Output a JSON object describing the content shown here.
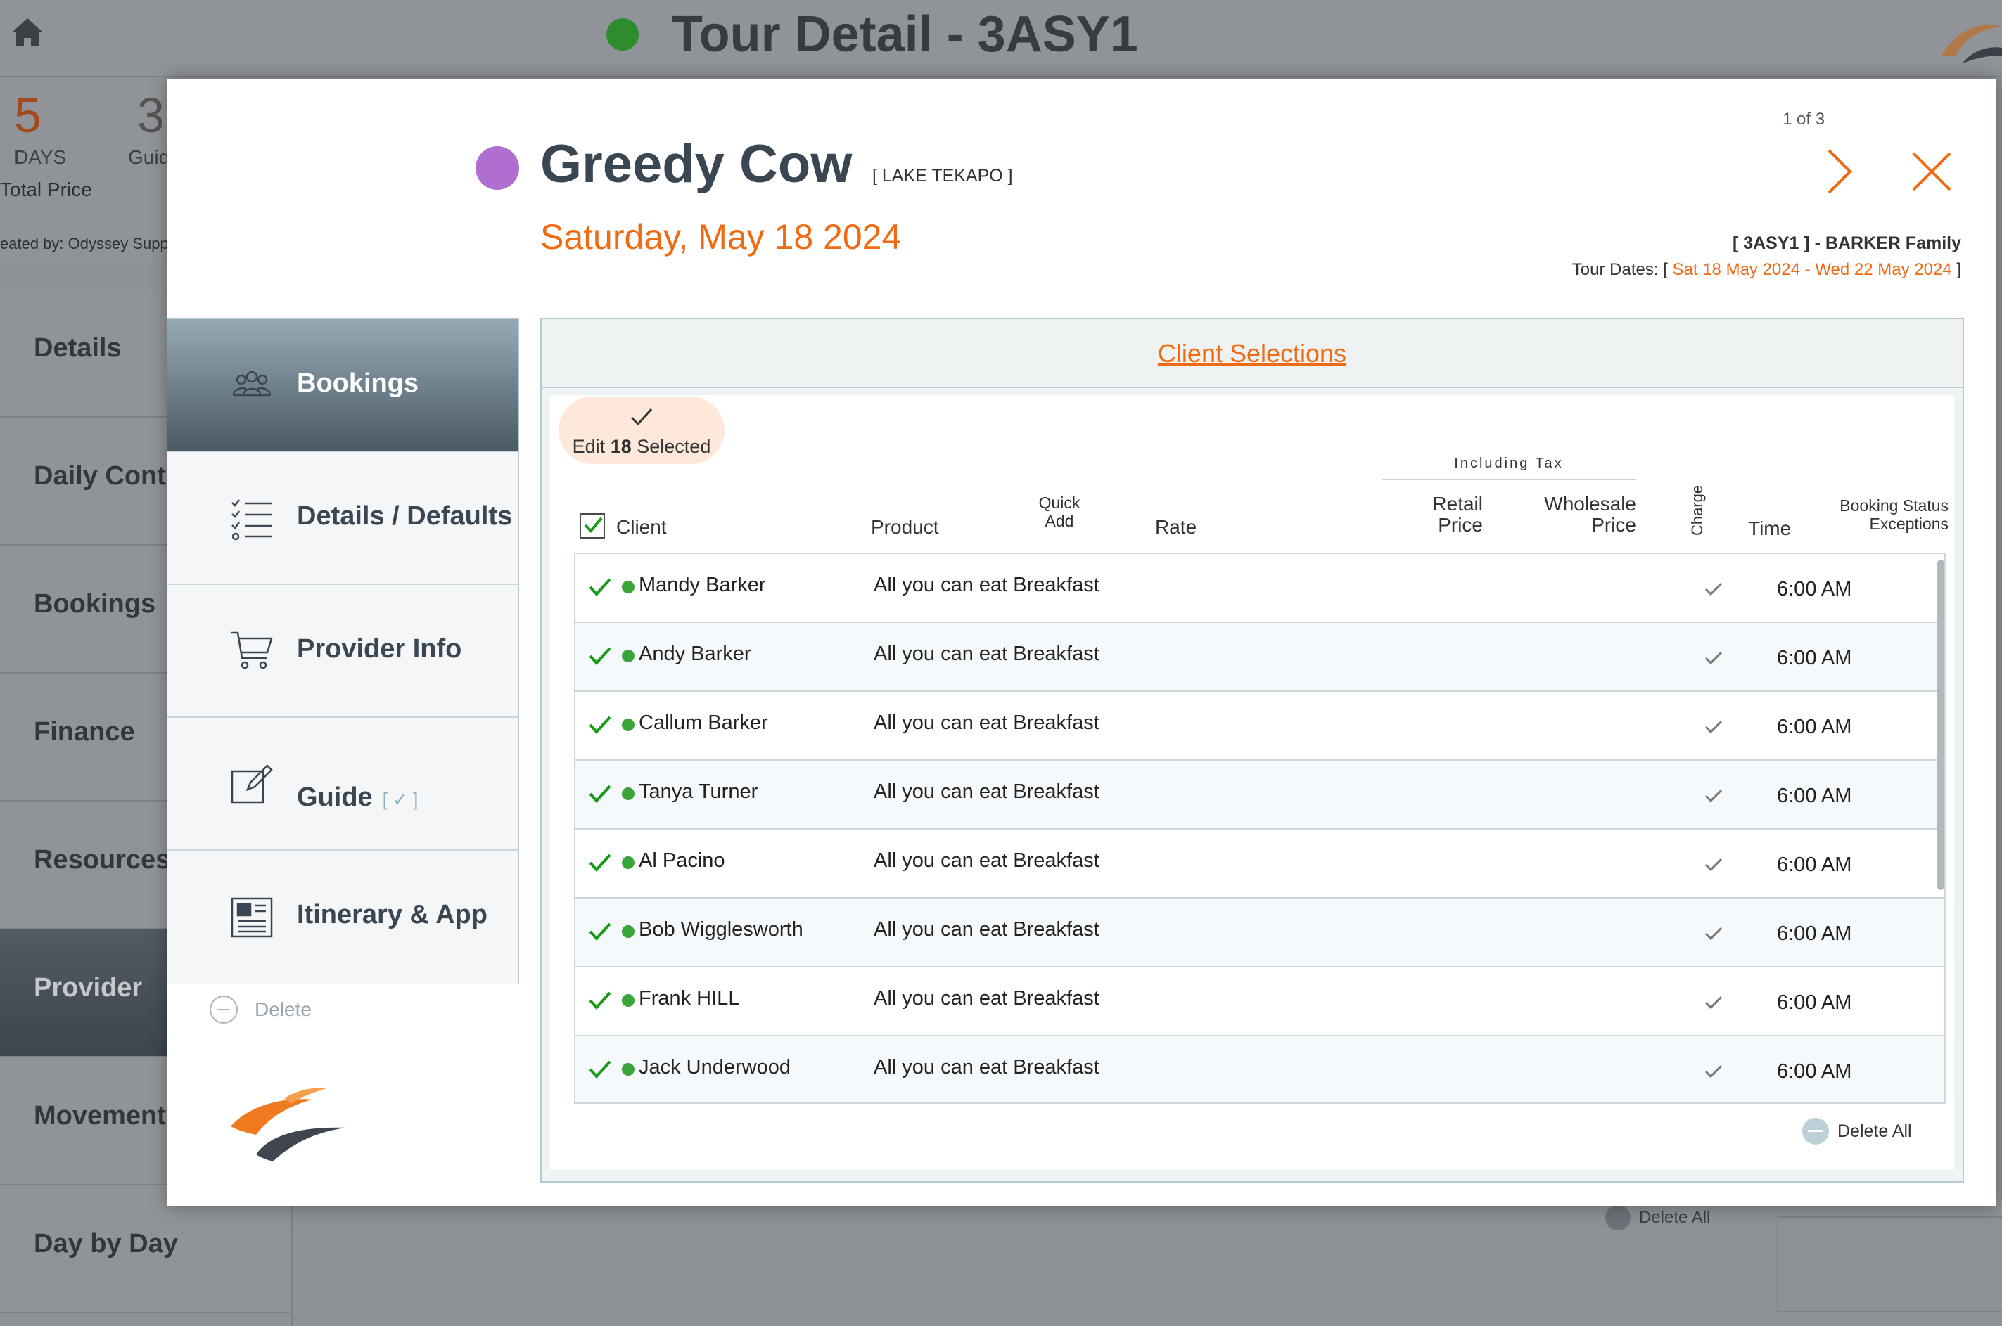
{
  "background": {
    "title": "Tour Detail - 3ASY1",
    "days_number": "5",
    "days_label": "DAYS",
    "guides_number": "3",
    "guides_label": "Guid",
    "total_price": "Total Price",
    "created_by": "eated by: Odyssey Supp",
    "nav": [
      "Details",
      "Daily Conte",
      "Bookings",
      "Finance",
      "Resources",
      "Provider",
      "Movements",
      "Day by Day"
    ],
    "active_nav": "Provider",
    "delete_all": "Delete All"
  },
  "modal": {
    "provider_name": "Greedy Cow",
    "provider_color": "#b06fd0",
    "location": "[ LAKE TEKAPO ]",
    "date": "Saturday, May 18 2024",
    "pager": "1 of 3",
    "family": "[ 3ASY1 ] - BARKER Family",
    "tour_dates_prefix": "Tour Dates: [",
    "tour_start": "Sat 18 May 2024",
    "tour_sep": "-",
    "tour_end": "Wed 22 May 2024",
    "tour_dates_suffix": "]",
    "accent_color": "#f06a12",
    "tabs": [
      {
        "label": "Bookings",
        "icon": "people-icon"
      },
      {
        "label": "Details / Defaults",
        "icon": "checklist-icon"
      },
      {
        "label": "Provider Info",
        "icon": "cart-icon"
      },
      {
        "label": "Guide",
        "sub": "[ ✓ ]",
        "icon": "edit-icon"
      },
      {
        "label": "Itinerary & App",
        "icon": "newspaper-icon"
      }
    ],
    "delete_label": "Delete",
    "panel_title": "Client Selections",
    "edit_selected_prefix": "Edit",
    "edit_selected_count": "18",
    "edit_selected_suffix": "Selected",
    "columns": {
      "client": "Client",
      "product": "Product",
      "quick_add_1": "Quick",
      "quick_add_2": "Add",
      "rate": "Rate",
      "including_tax": "Including Tax",
      "retail_1": "Retail",
      "retail_2": "Price",
      "wholesale_1": "Wholesale",
      "wholesale_2": "Price",
      "charge": "Charge",
      "time": "Time",
      "status_1": "Booking Status",
      "status_2": "Exceptions"
    },
    "rows": [
      {
        "client": "Mandy Barker",
        "product": "All you can eat Breakfast",
        "time": "6:00 AM"
      },
      {
        "client": "Andy Barker",
        "product": "All you can eat Breakfast",
        "time": "6:00 AM"
      },
      {
        "client": "Callum Barker",
        "product": "All you can eat Breakfast",
        "time": "6:00 AM"
      },
      {
        "client": "Tanya Turner",
        "product": "All you can eat Breakfast",
        "time": "6:00 AM"
      },
      {
        "client": "Al Pacino",
        "product": "All you can eat Breakfast",
        "time": "6:00 AM"
      },
      {
        "client": "Bob Wigglesworth",
        "product": "All you can eat Breakfast",
        "time": "6:00 AM"
      },
      {
        "client": "Frank HILL",
        "product": "All you can eat Breakfast",
        "time": "6:00 AM"
      },
      {
        "client": "Jack Underwood",
        "product": "All you can eat Breakfast",
        "time": "6:00 AM"
      }
    ],
    "delete_all": "Delete All"
  }
}
